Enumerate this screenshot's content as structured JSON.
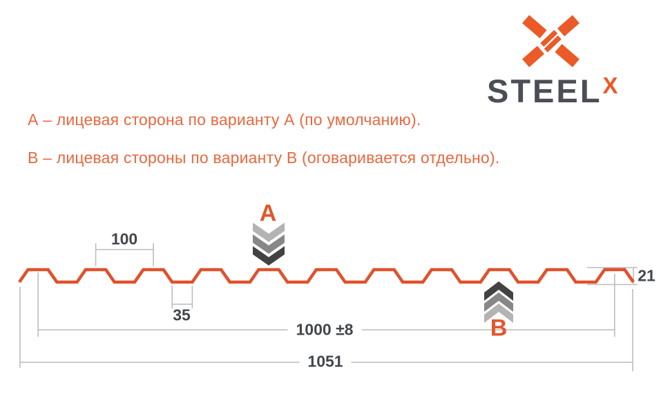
{
  "brand": {
    "name": "STEEL",
    "sup": "X"
  },
  "notes": [
    "А – лицевая сторона по варианту А (по умолчанию).",
    "В – лицевая стороны по варианту В (оговаривается отдельно)."
  ],
  "diagram": {
    "marker_a": "А",
    "marker_b": "В",
    "dimensions": {
      "wave_pitch": "100",
      "trough_width": "35",
      "working_width": "1000 ±8",
      "overall_width": "1051",
      "profile_height": "21"
    },
    "geometry": {
      "pitch_mm": 100,
      "slope_run_mm": 15,
      "crest_flat_mm": 35,
      "trough_flat_mm": 35,
      "height_mm": 21,
      "full_periods": 10,
      "working_width_mm": 1000,
      "tolerance_mm": 8,
      "overall_width_mm": 1051
    },
    "colors": {
      "profile": "#e0512b",
      "dim_line": "#bcbcbd",
      "dim_text": "#43474c",
      "marker": "#e2572e",
      "chevron_light": "#b3b3b3",
      "chevron_mid": "#878787",
      "chevron_dark": "#424242"
    }
  },
  "colors": {
    "accent": "#ea5b28",
    "note_text": "#e8683f",
    "brand_dark": "#4b4f55"
  }
}
